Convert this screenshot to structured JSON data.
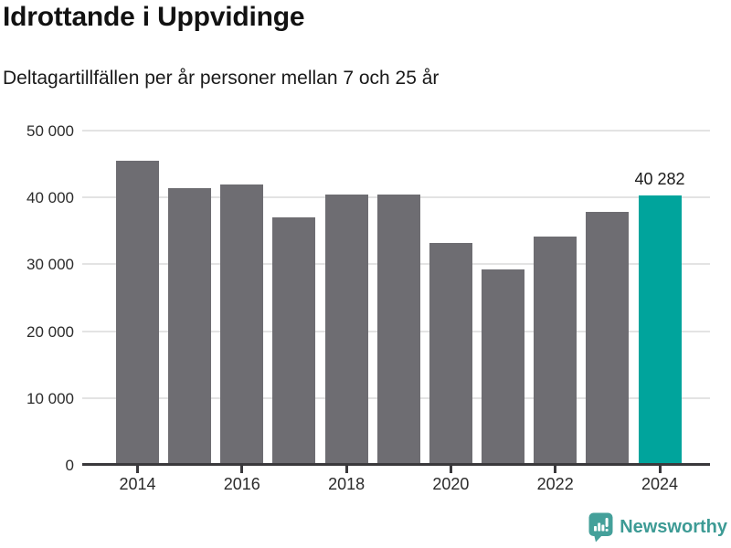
{
  "header": {
    "title": "Idrottande i Uppvidinge",
    "subtitle": "Deltagartillfällen per år personer mellan 7 och 25 år"
  },
  "chart_data": {
    "type": "bar",
    "title": "Idrottande i Uppvidinge",
    "subtitle": "Deltagartillfällen per år personer mellan 7 och 25 år",
    "categories": [
      "2014",
      "2015",
      "2016",
      "2017",
      "2018",
      "2019",
      "2020",
      "2021",
      "2022",
      "2023",
      "2024"
    ],
    "values": [
      45500,
      41400,
      42000,
      37000,
      40400,
      40400,
      33200,
      29200,
      34200,
      37800,
      40282
    ],
    "highlight_index": 10,
    "highlight_label": "40 282",
    "bar_color": "#6e6d72",
    "highlight_color": "#00a49c",
    "xlabel": "",
    "ylabel": "",
    "ylim": [
      0,
      50000
    ],
    "yticks": [
      0,
      10000,
      20000,
      30000,
      40000,
      50000
    ],
    "ytick_labels": [
      "0",
      "10 000",
      "20 000",
      "30 000",
      "40 000",
      "50 000"
    ],
    "xtick_indices": [
      0,
      2,
      4,
      6,
      8,
      10
    ],
    "xtick_labels": [
      "2014",
      "2016",
      "2018",
      "2020",
      "2022",
      "2024"
    ],
    "grid": "horizontal",
    "legend": "none",
    "gridline_color": "#e3e3e3",
    "axis_color": "#3a393c",
    "tick_label_color": "#2b2b2b"
  },
  "footer": {
    "brand": "Newsworthy",
    "brand_color": "#3d9b95",
    "icon": "newsworthy-barchart-pin-icon"
  }
}
